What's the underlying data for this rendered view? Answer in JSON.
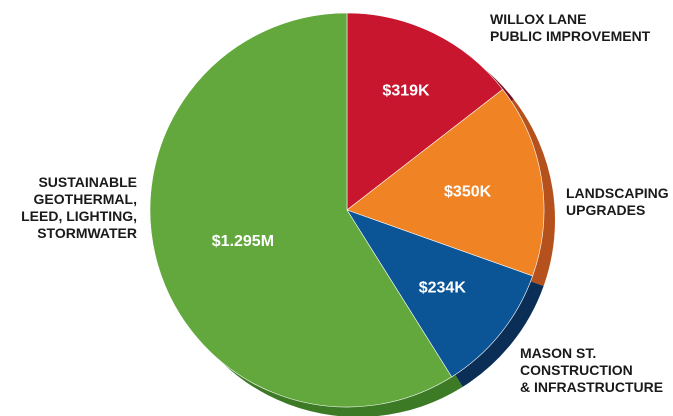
{
  "chart_data": {
    "type": "pie",
    "title": "",
    "units": "USD",
    "slices": [
      {
        "label_lines": [
          "WILLOX LANE",
          "PUBLIC IMPROVEMENT"
        ],
        "value": 319000,
        "display": "$319K",
        "color": "#c8162f",
        "side": "#7a0f1c"
      },
      {
        "label_lines": [
          "LANDSCAPING",
          "UPGRADES"
        ],
        "value": 350000,
        "display": "$350K",
        "color": "#f08323",
        "side": "#b4511c"
      },
      {
        "label_lines": [
          "MASON ST.",
          "CONSTRUCTION",
          "& INFRASTRUCTURE"
        ],
        "value": 234000,
        "display": "$234K",
        "color": "#0b5597",
        "side": "#0a2e55"
      },
      {
        "label_lines": [
          "SUSTAINABLE",
          "GEOTHERMAL,",
          "LEED, LIGHTING,",
          "STORMWATER"
        ],
        "value": 1295000,
        "display": "$1.295M",
        "color": "#62a83d",
        "side": "#3d7a26"
      }
    ]
  }
}
